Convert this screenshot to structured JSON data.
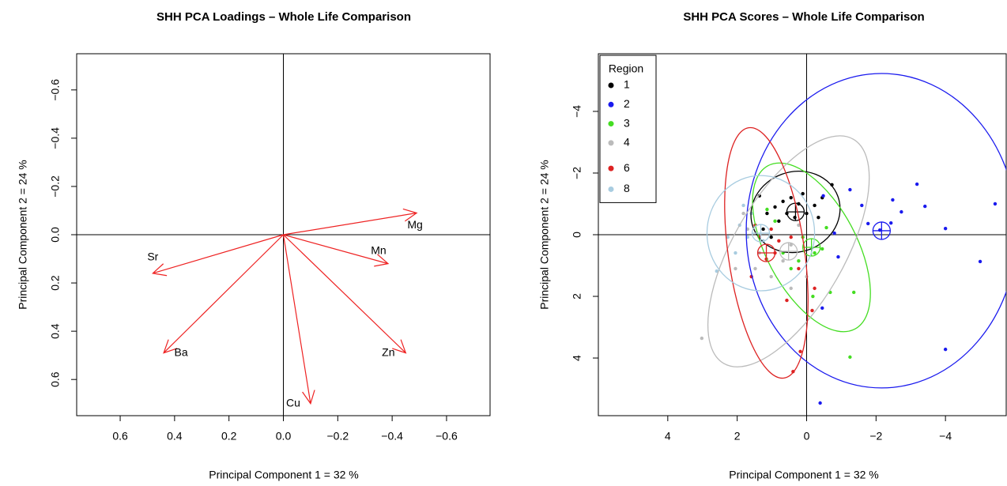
{
  "chart_data": [
    {
      "type": "biplot",
      "title": "SHH PCA Loadings – Whole Life Comparison",
      "xlabel": "Principal Component 1 =  32 %",
      "ylabel": "Principal Component 2 =  24 %",
      "xlim": [
        0.76,
        -0.76
      ],
      "ylim": [
        0.75,
        -0.75
      ],
      "xticks": [
        {
          "value": 0.6,
          "label": "0.6"
        },
        {
          "value": 0.4,
          "label": "0.4"
        },
        {
          "value": 0.2,
          "label": "0.2"
        },
        {
          "value": 0,
          "label": "0.0"
        },
        {
          "value": -0.2,
          "label": "−0.2"
        },
        {
          "value": -0.4,
          "label": "−0.4"
        },
        {
          "value": -0.6,
          "label": "−0.6"
        }
      ],
      "yticks": [
        {
          "value": -0.6,
          "label": "−0.6"
        },
        {
          "value": -0.4,
          "label": "−0.4"
        },
        {
          "value": -0.2,
          "label": "−0.2"
        },
        {
          "value": 0,
          "label": "0.0"
        },
        {
          "value": 0.2,
          "label": "0.2"
        },
        {
          "value": 0.4,
          "label": "0.4"
        },
        {
          "value": 0.6,
          "label": "0.6"
        }
      ],
      "color": "#ee2222",
      "categories": [
        "Mg",
        "Mn",
        "Sr",
        "Ba",
        "Cu",
        "Zn"
      ],
      "x": [
        -0.49,
        -0.385,
        0.48,
        0.44,
        -0.1,
        -0.45
      ],
      "values": [
        -0.09,
        0.12,
        0.16,
        0.49,
        0.7,
        0.49
      ]
    },
    {
      "type": "scatter",
      "title": "SHH PCA Scores – Whole Life Comparison",
      "xlabel": "Principal Component 1 =  32 %",
      "ylabel": "Principal Component 2 =  24 %",
      "xlim": [
        6,
        -5.75
      ],
      "ylim": [
        5.87,
        -5.87
      ],
      "xticks": [
        4,
        2,
        0,
        {
          "value": -2,
          "label": "−2"
        },
        {
          "value": -4,
          "label": "−4"
        }
      ],
      "yticks": [
        {
          "value": -4,
          "label": "−4"
        },
        {
          "value": -2,
          "label": "−2"
        },
        0,
        2,
        4
      ],
      "legend_title": "Region",
      "legend": "top-left",
      "series": [
        {
          "name": "1",
          "color": "#000000",
          "x": [
            -0.73,
            -0.45,
            -0.23,
            0.11,
            0.45,
            0.68,
            0.91,
            1.14,
            0.8,
            0.34,
            0,
            -0.34,
            1.36,
            1.02,
            1.25,
            0.23,
            0.57
          ],
          "values": [
            -1.62,
            -1.2,
            -0.95,
            -1.33,
            -1.2,
            -1.08,
            -0.9,
            -0.69,
            -0.44,
            -0.56,
            -0.69,
            -0.56,
            -1.26,
            0.08,
            -0.18,
            -1.0,
            -0.69
          ],
          "ellipse": {
            "cx": 0.32,
            "cy": -0.74,
            "rx": 1.3,
            "ry": 1.3,
            "angle": -20
          }
        },
        {
          "name": "2",
          "color": "#1a1aee",
          "x": [
            -5.43,
            -5.0,
            -4.0,
            -4.0,
            -3.41,
            -3.18,
            -2.73,
            -2.48,
            -2.43,
            -2.11,
            -1.77,
            -1.59,
            -1.25,
            -0.8,
            -0.48,
            -0.91,
            -0.45,
            -0.39
          ],
          "values": [
            -1.0,
            0.87,
            3.72,
            -0.2,
            -0.92,
            -1.64,
            -0.74,
            -1.13,
            -0.38,
            -0.15,
            -0.36,
            -0.95,
            -1.46,
            -0.05,
            -1.26,
            0.72,
            2.38,
            5.46
          ],
          "ellipse": {
            "cx": -2.16,
            "cy": -0.13,
            "rx": 3.9,
            "ry": 5.1,
            "angle": 0
          }
        },
        {
          "name": "3",
          "color": "#44dd22",
          "x": [
            -1.36,
            -1.25,
            -0.18,
            -0.45,
            -0.23,
            0.23,
            0.45,
            0.68,
            0.91,
            1.14,
            -0.68,
            0.11,
            -0.57
          ],
          "values": [
            1.87,
            3.97,
            2.0,
            0.46,
            0.59,
            0.85,
            1.1,
            0.59,
            -0.44,
            -0.82,
            1.87,
            0.08,
            -0.23
          ],
          "ellipse": {
            "cx": -0.14,
            "cy": 0.41,
            "rx": 1.3,
            "ry": 3.0,
            "angle": -28
          }
        },
        {
          "name": "4",
          "color": "#bbbbbb",
          "x": [
            3.02,
            2.05,
            1.7,
            1.82,
            1.36,
            1.48,
            1.02,
            0.45,
            0,
            0.23,
            0.68,
            0.45
          ],
          "values": [
            3.36,
            1.1,
            -0.18,
            -0.69,
            0.59,
            1.1,
            1.36,
            0.33,
            1.36,
            -0.31,
            0.85,
            1.74
          ],
          "ellipse": {
            "cx": 0.52,
            "cy": 0.54,
            "rx": 1.6,
            "ry": 4.2,
            "angle": 30
          }
        },
        {
          "name": "6",
          "color": "#dd2222",
          "x": [
            0.39,
            0.18,
            -0.16,
            -0.23,
            0.23,
            0.57,
            1.16,
            0.91,
            1.48,
            1.36,
            1.02,
            0.45,
            1.59,
            0.8
          ],
          "values": [
            4.44,
            3.79,
            2.46,
            1.74,
            1.1,
            2.13,
            0.79,
            0.59,
            -0.31,
            0.08,
            -0.18,
            0.08,
            1.36,
            0.2
          ],
          "ellipse": {
            "cx": 1.16,
            "cy": 0.59,
            "rx": 1.1,
            "ry": 4.1,
            "angle": -8
          }
        },
        {
          "name": "8",
          "color": "#a8cce0",
          "x": [
            2.59,
            2.27,
            1.93,
            1.7,
            2.05,
            1.59,
            1.25,
            1.82
          ],
          "values": [
            1.18,
            0.08,
            -0.31,
            0.08,
            0.59,
            -0.69,
            0.2,
            -0.95
          ],
          "ellipse": {
            "cx": 1.32,
            "cy": -0.05,
            "rx": 1.55,
            "ry": 1.87,
            "angle": 0
          }
        }
      ]
    }
  ]
}
